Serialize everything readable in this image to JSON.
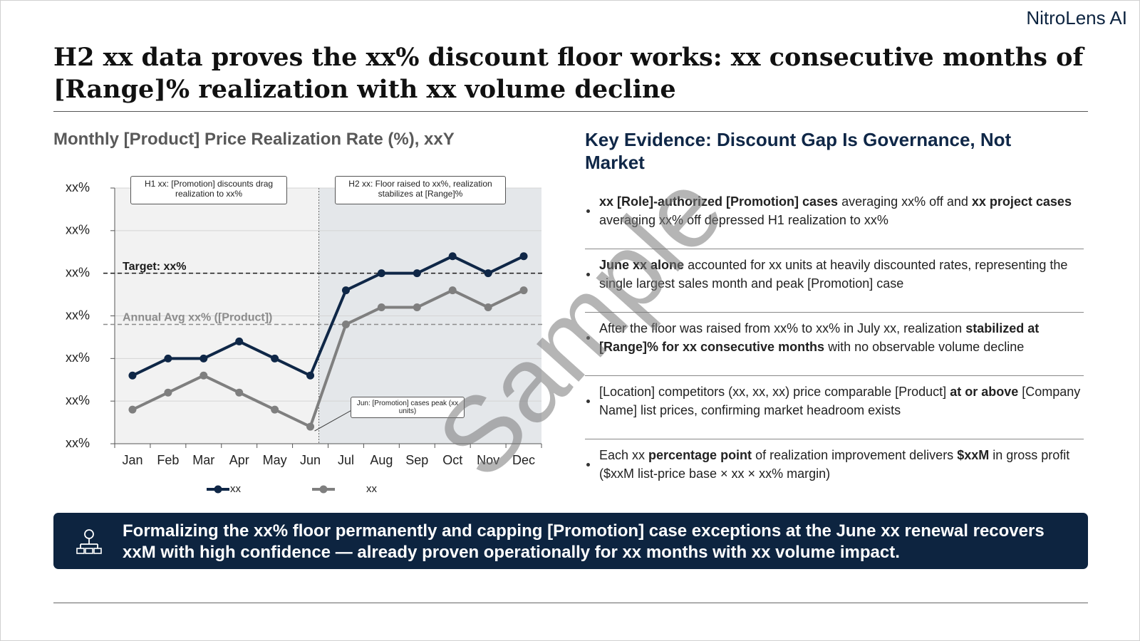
{
  "brand": "NitroLens AI",
  "header": {
    "title": "H2 xx data proves the xx% discount floor works: xx consecutive months of [Range]% realization with xx volume decline"
  },
  "chart_data": {
    "type": "line",
    "title": "Monthly [Product] Price Realization Rate (%), xxY",
    "categories": [
      "Jan",
      "Feb",
      "Mar",
      "Apr",
      "May",
      "Jun",
      "Jul",
      "Aug",
      "Sep",
      "Oct",
      "Nov",
      "Dec"
    ],
    "series": [
      {
        "name": "xx",
        "color": "#0f2747",
        "values": [
          1.6,
          2.0,
          2.0,
          2.4,
          2.0,
          1.6,
          3.6,
          4.0,
          4.0,
          4.4,
          4.0,
          4.4
        ]
      },
      {
        "name": "xx",
        "color": "#7f7f7f",
        "values": [
          0.8,
          1.2,
          1.6,
          1.2,
          0.8,
          0.4,
          2.8,
          3.2,
          3.2,
          3.6,
          3.2,
          3.6
        ]
      }
    ],
    "ylim": [
      0,
      6
    ],
    "yticks": [
      {
        "value": 0,
        "label": "xx%"
      },
      {
        "value": 1,
        "label": "xx%"
      },
      {
        "value": 2,
        "label": "xx%"
      },
      {
        "value": 3,
        "label": "xx%"
      },
      {
        "value": 4,
        "label": "xx%"
      },
      {
        "value": 5,
        "label": "xx%"
      },
      {
        "value": 6,
        "label": "xx%"
      }
    ],
    "grid": true,
    "legend": "bottom",
    "reference_lines": [
      {
        "label": "Target: xx%",
        "value": 4.0,
        "color": "#1a1a1a"
      },
      {
        "label": "Annual Avg xx% ([Product])",
        "value": 2.8,
        "color": "#8c8c8c"
      }
    ],
    "annotations": [
      {
        "text": "H1 xx: [Promotion] discounts drag realization to xx%"
      },
      {
        "text": "H2 xx: Floor raised to xx%, realization stabilizes at [Range]%"
      },
      {
        "text": "Jun: [Promotion] cases peak (xx units)"
      }
    ]
  },
  "evidence": {
    "title": "Key Evidence: Discount Gap Is Governance, Not Market",
    "bullets": [
      [
        {
          "text": "xx [Role]-authorized [Promotion] cases",
          "bold": true
        },
        {
          "text": " averaging xx% off and "
        },
        {
          "text": "xx project cases",
          "bold": true
        },
        {
          "text": " averaging xx% off depressed H1 realization to xx%"
        }
      ],
      [
        {
          "text": "June xx alone",
          "bold": true
        },
        {
          "text": " accounted for xx units at heavily discounted rates, representing the single largest sales month and peak [Promotion] case"
        }
      ],
      [
        {
          "text": "After the floor was raised from xx% to xx% in July xx, realization "
        },
        {
          "text": "stabilized at [Range]% for xx consecutive months",
          "bold": true
        },
        {
          "text": " with no observable volume decline"
        }
      ],
      [
        {
          "text": "[Location] competitors (xx, xx, xx) price comparable [Product] "
        },
        {
          "text": "at or above",
          "bold": true
        },
        {
          "text": " [Company Name] list prices, confirming market headroom exists"
        }
      ],
      [
        {
          "text": "Each xx "
        },
        {
          "text": "percentage point",
          "bold": true
        },
        {
          "text": " of realization improvement delivers "
        },
        {
          "text": "$xxM",
          "bold": true
        },
        {
          "text": " in gross profit ($xxM list-price base × xx × xx% margin)"
        }
      ]
    ]
  },
  "banner": {
    "text": "Formalizing the xx% floor permanently and capping [Promotion] case exceptions at the June xx renewal recovers xxM with high confidence — already proven operationally for xx months with xx volume impact."
  },
  "watermark": "Sample"
}
